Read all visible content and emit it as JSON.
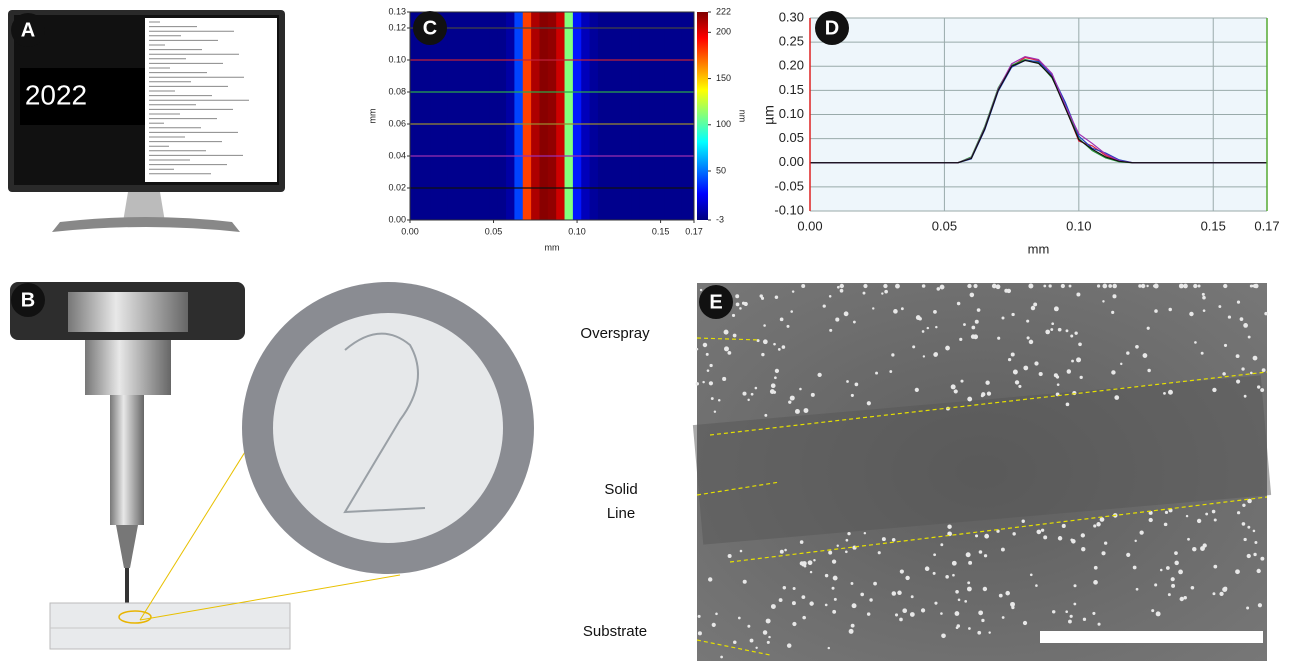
{
  "panel_labels": [
    "A",
    "B",
    "C",
    "D",
    "E"
  ],
  "monitor": {
    "year": "2022"
  },
  "chart_data": [
    {
      "type": "heatmap",
      "xlabel": "mm",
      "ylabel": "mm",
      "x": [
        0,
        0.005,
        0.01,
        0.015,
        0.02,
        0.025,
        0.03,
        0.035,
        0.04,
        0.045,
        0.05,
        0.055,
        0.06,
        0.065,
        0.07,
        0.075,
        0.08,
        0.085,
        0.09,
        0.095,
        0.1,
        0.105,
        0.11,
        0.115,
        0.12,
        0.125,
        0.13,
        0.135,
        0.14,
        0.145,
        0.15,
        0.155,
        0.16,
        0.165,
        0.17
      ],
      "values": [
        0,
        0,
        0,
        0,
        0,
        0,
        0,
        0,
        0,
        0,
        0,
        0,
        5,
        40,
        180,
        212,
        220,
        218,
        205,
        110,
        30,
        10,
        3,
        0,
        0,
        0,
        0,
        0,
        0,
        0,
        0,
        0,
        0,
        0,
        0
      ],
      "xlim": [
        0,
        0.17
      ],
      "xticks": [
        {
          "value": 0,
          "label": "0.00"
        },
        0.05,
        {
          "value": 0.1,
          "label": "0.10"
        },
        0.15,
        0.17
      ],
      "ylim": [
        0,
        0.13
      ],
      "yticks": [
        {
          "value": 0,
          "label": "0.00"
        },
        0.02,
        0.04,
        0.06,
        0.08,
        {
          "value": 0.1,
          "label": "0.10"
        },
        0.12,
        0.13
      ],
      "clim": [
        -3,
        222
      ],
      "cticks": [
        -3,
        50,
        100,
        150,
        200,
        222
      ],
      "clabel": "nm",
      "profile_lines": [
        {
          "y": 0.12,
          "color": "#444444"
        },
        {
          "y": 0.1,
          "color": "#c0203a"
        },
        {
          "y": 0.08,
          "color": "#2aa84a"
        },
        {
          "y": 0.06,
          "color": "#9a8a30"
        },
        {
          "y": 0.04,
          "color": "#9b2fb0"
        },
        {
          "y": 0.02,
          "color": "#111111"
        }
      ]
    },
    {
      "type": "line",
      "xlabel": "mm",
      "ylabel": "µm",
      "grid": true,
      "x": [
        0,
        0.055,
        0.06,
        0.065,
        0.07,
        0.075,
        0.08,
        0.085,
        0.09,
        0.095,
        0.1,
        0.105,
        0.11,
        0.115,
        0.12,
        0.17
      ],
      "series": [
        {
          "color": "#e0203a",
          "values": [
            0,
            0,
            0.01,
            0.07,
            0.15,
            0.2,
            0.218,
            0.212,
            0.18,
            0.115,
            0.045,
            0.035,
            0.015,
            0.004,
            0,
            0
          ]
        },
        {
          "color": "#2a9a3a",
          "values": [
            0,
            0,
            0.012,
            0.075,
            0.155,
            0.202,
            0.214,
            0.208,
            0.176,
            0.12,
            0.05,
            0.025,
            0.01,
            0.002,
            0,
            0
          ]
        },
        {
          "color": "#2040c0",
          "values": [
            0,
            0,
            0.008,
            0.068,
            0.148,
            0.198,
            0.212,
            0.21,
            0.182,
            0.125,
            0.055,
            0.03,
            0.02,
            0.006,
            0,
            0
          ]
        },
        {
          "color": "#a030b0",
          "values": [
            0,
            0,
            0.01,
            0.072,
            0.152,
            0.205,
            0.22,
            0.214,
            0.185,
            0.118,
            0.06,
            0.04,
            0.018,
            0.004,
            0,
            0
          ]
        },
        {
          "color": "#111111",
          "values": [
            0,
            0,
            0.009,
            0.07,
            0.15,
            0.2,
            0.212,
            0.206,
            0.178,
            0.113,
            0.048,
            0.028,
            0.012,
            0.003,
            0,
            0
          ]
        }
      ],
      "xlim": [
        0,
        0.17
      ],
      "xticks": [
        {
          "value": 0,
          "label": "0.00"
        },
        0.05,
        {
          "value": 0.1,
          "label": "0.10"
        },
        0.15,
        0.17
      ],
      "ylim": [
        -0.1,
        0.3
      ],
      "yticks": [
        {
          "value": -0.1,
          "label": "-0.10"
        },
        -0.05,
        {
          "value": 0,
          "label": "0.00"
        },
        0.05,
        {
          "value": 0.1,
          "label": "0.10"
        },
        0.15,
        {
          "value": 0.2,
          "label": "0.20"
        },
        0.25,
        {
          "value": 0.3,
          "label": "0.30"
        }
      ]
    }
  ],
  "sem_labels": [
    "Overspray",
    "Solid Line",
    "Substrate"
  ]
}
